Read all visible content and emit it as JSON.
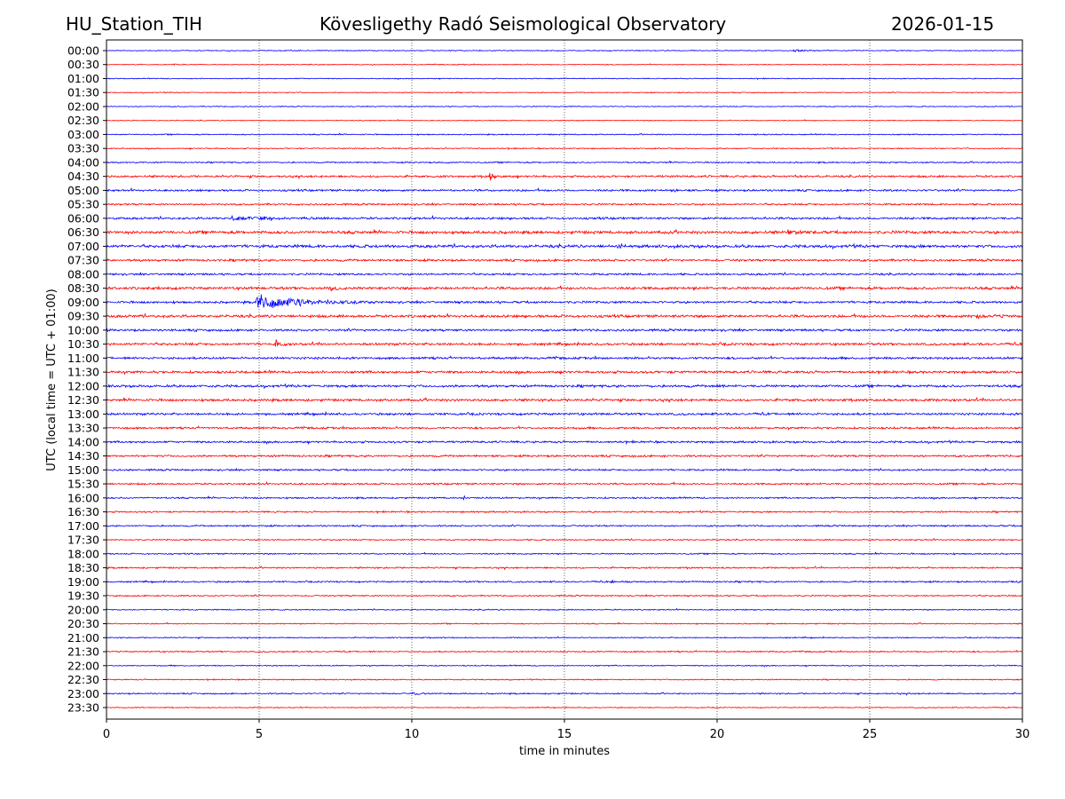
{
  "header": {
    "station": "HU_Station_TIH",
    "title": "Kövesligethy Radó Seismological Observatory",
    "date": "2026-01-15"
  },
  "chart_data": {
    "type": "line",
    "subtype": "helicorder",
    "xlabel": "time in minutes",
    "ylabel": "UTC (local time = UTC + 01:00)",
    "xlim": [
      0,
      30
    ],
    "xticks": [
      "0",
      "5",
      "10",
      "15",
      "20",
      "25",
      "30"
    ],
    "grid": "vertical dotted at every 5 minutes",
    "colors": [
      "#0000ff",
      "#ff0000"
    ],
    "rows": [
      "00:00",
      "00:30",
      "01:00",
      "01:30",
      "02:00",
      "02:30",
      "03:00",
      "03:30",
      "04:00",
      "04:30",
      "05:00",
      "05:30",
      "06:00",
      "06:30",
      "07:00",
      "07:30",
      "08:00",
      "08:30",
      "09:00",
      "09:30",
      "10:00",
      "10:30",
      "11:00",
      "11:30",
      "12:00",
      "12:30",
      "13:00",
      "13:30",
      "14:00",
      "14:30",
      "15:00",
      "15:30",
      "16:00",
      "16:30",
      "17:00",
      "17:30",
      "18:00",
      "18:30",
      "19:00",
      "19:30",
      "20:00",
      "20:30",
      "21:00",
      "21:30",
      "22:00",
      "22:30",
      "23:00",
      "23:30"
    ],
    "noise_level": [
      0.4,
      0.4,
      0.4,
      0.4,
      0.4,
      0.4,
      0.5,
      0.5,
      0.6,
      0.9,
      0.9,
      0.8,
      1.0,
      1.3,
      1.3,
      1.0,
      0.9,
      1.2,
      1.0,
      1.2,
      1.0,
      1.1,
      1.0,
      1.1,
      1.1,
      1.1,
      1.0,
      0.9,
      0.9,
      0.9,
      0.8,
      0.8,
      0.7,
      0.7,
      0.7,
      0.6,
      0.6,
      0.7,
      0.7,
      0.6,
      0.5,
      0.5,
      0.5,
      0.6,
      0.5,
      0.5,
      0.6,
      0.4
    ],
    "events": [
      {
        "row": 0,
        "minute": 22.5,
        "amplitude": 1.2,
        "duration": 1.5
      },
      {
        "row": 1,
        "minute": 2.2,
        "amplitude": 2.0,
        "duration": 0.2
      },
      {
        "row": 1,
        "minute": 8.7,
        "amplitude": 1.2,
        "duration": 0.2
      },
      {
        "row": 6,
        "minute": 21.2,
        "amplitude": 2.0,
        "duration": 0.2
      },
      {
        "row": 8,
        "minute": 11.1,
        "amplitude": 2.2,
        "duration": 0.2
      },
      {
        "row": 9,
        "minute": 12.55,
        "amplitude": 5.5,
        "duration": 0.5
      },
      {
        "row": 9,
        "minute": 22.5,
        "amplitude": 1.5,
        "duration": 1.0
      },
      {
        "row": 10,
        "minute": 18.6,
        "amplitude": 2.0,
        "duration": 0.3
      },
      {
        "row": 12,
        "minute": 4.1,
        "amplitude": 1.6,
        "duration": 3.0
      },
      {
        "row": 13,
        "minute": 22.3,
        "amplitude": 2.0,
        "duration": 1.0
      },
      {
        "row": 14,
        "minute": 16.7,
        "amplitude": 2.0,
        "duration": 0.4
      },
      {
        "row": 17,
        "minute": 1.7,
        "amplitude": 2.0,
        "duration": 0.2
      },
      {
        "row": 17,
        "minute": 7.3,
        "amplitude": 1.6,
        "duration": 1.5
      },
      {
        "row": 18,
        "minute": 4.9,
        "amplitude": 11.0,
        "duration": 4.0
      },
      {
        "row": 19,
        "minute": 28.5,
        "amplitude": 2.2,
        "duration": 1.2
      },
      {
        "row": 21,
        "minute": 5.5,
        "amplitude": 6.5,
        "duration": 0.4
      },
      {
        "row": 24,
        "minute": 20.0,
        "amplitude": 2.0,
        "duration": 0.2
      },
      {
        "row": 25,
        "minute": 25.0,
        "amplitude": 1.8,
        "duration": 0.3
      },
      {
        "row": 32,
        "minute": 11.7,
        "amplitude": 2.0,
        "duration": 0.2
      },
      {
        "row": 38,
        "minute": 16.5,
        "amplitude": 1.3,
        "duration": 1.0
      },
      {
        "row": 46,
        "minute": 10.0,
        "amplitude": 1.6,
        "duration": 1.0
      }
    ]
  }
}
